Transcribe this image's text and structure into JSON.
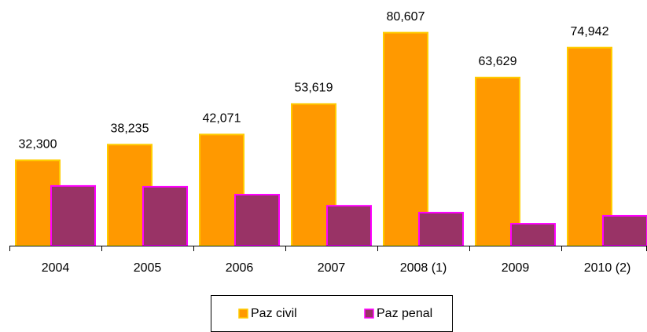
{
  "chart_data": {
    "type": "bar",
    "categories": [
      "2004",
      "2005",
      "2006",
      "2007",
      "2008 (1)",
      "2009",
      "2010 (2)"
    ],
    "series": [
      {
        "name": "Paz civil",
        "color": "#FF9900",
        "stroke": "#FFCC00",
        "values": [
          32300,
          38235,
          42071,
          53619,
          80607,
          63629,
          74942
        ],
        "value_labels": [
          "32,300",
          "38,235",
          "42,071",
          "53,619",
          "80,607",
          "63,629",
          "74,942"
        ]
      },
      {
        "name": "Paz penal",
        "color": "#993366",
        "stroke": "#FF00FF",
        "values": [
          22600,
          22300,
          19300,
          15100,
          12500,
          8300,
          11300
        ]
      }
    ],
    "ylim": [
      0,
      90000
    ]
  }
}
